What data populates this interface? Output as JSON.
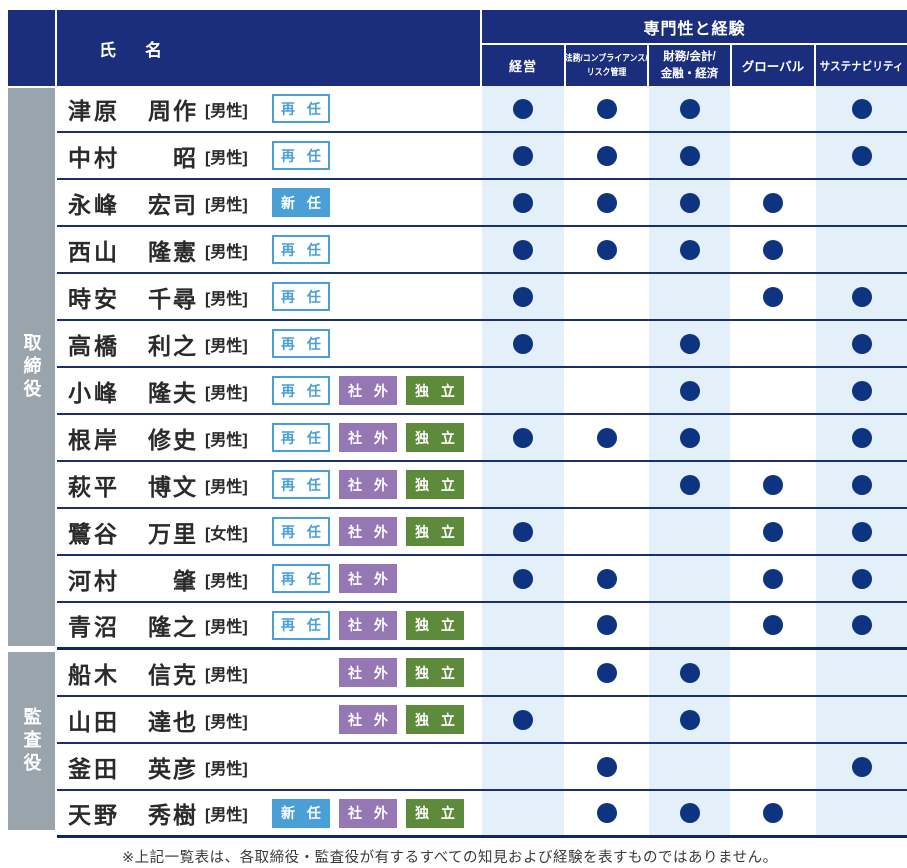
{
  "header": {
    "name_col": "氏　名",
    "expertise_group": "専門性と経験",
    "expertise_cols": [
      {
        "label": "経営",
        "lines": [
          "経営"
        ]
      },
      {
        "label": "法務/コンプライアンス/リスク管理",
        "lines": [
          "法務/コンプライアンス/",
          "リスク管理"
        ]
      },
      {
        "label": "財務/会計/金融・経済",
        "lines": [
          "財務/会計/",
          "金融・経済"
        ]
      },
      {
        "label": "グローバル",
        "lines": [
          "グローバル"
        ]
      },
      {
        "label": "サステナビリティ",
        "lines": [
          "サステナビリティ"
        ]
      }
    ]
  },
  "badge_defs": {
    "sainin": {
      "label": "再 任",
      "style": "outline-blue"
    },
    "shinnin": {
      "label": "新 任",
      "style": "fill-blue"
    },
    "shagai": {
      "label": "社 外",
      "style": "fill-purple"
    },
    "dokuritsu": {
      "label": "独 立",
      "style": "fill-green"
    }
  },
  "sections": [
    {
      "label": "取締役",
      "rows": [
        {
          "sei": "津原",
          "mei": "周作",
          "gender": "[男性]",
          "badges": [
            "sainin",
            null,
            null
          ],
          "dots": [
            1,
            1,
            1,
            0,
            1
          ]
        },
        {
          "sei": "中村",
          "mei": "昭",
          "gender": "[男性]",
          "badges": [
            "sainin",
            null,
            null
          ],
          "dots": [
            1,
            1,
            1,
            0,
            1
          ]
        },
        {
          "sei": "永峰",
          "mei": "宏司",
          "gender": "[男性]",
          "badges": [
            "shinnin",
            null,
            null
          ],
          "dots": [
            1,
            1,
            1,
            1,
            0
          ]
        },
        {
          "sei": "西山",
          "mei": "隆憲",
          "gender": "[男性]",
          "badges": [
            "sainin",
            null,
            null
          ],
          "dots": [
            1,
            1,
            1,
            1,
            0
          ]
        },
        {
          "sei": "時安",
          "mei": "千尋",
          "gender": "[男性]",
          "badges": [
            "sainin",
            null,
            null
          ],
          "dots": [
            1,
            0,
            0,
            1,
            1
          ]
        },
        {
          "sei": "高橋",
          "mei": "利之",
          "gender": "[男性]",
          "badges": [
            "sainin",
            null,
            null
          ],
          "dots": [
            1,
            0,
            1,
            0,
            1
          ]
        },
        {
          "sei": "小峰",
          "mei": "隆夫",
          "gender": "[男性]",
          "badges": [
            "sainin",
            "shagai",
            "dokuritsu"
          ],
          "dots": [
            0,
            0,
            1,
            0,
            1
          ]
        },
        {
          "sei": "根岸",
          "mei": "修史",
          "gender": "[男性]",
          "badges": [
            "sainin",
            "shagai",
            "dokuritsu"
          ],
          "dots": [
            1,
            1,
            1,
            0,
            1
          ]
        },
        {
          "sei": "萩平",
          "mei": "博文",
          "gender": "[男性]",
          "badges": [
            "sainin",
            "shagai",
            "dokuritsu"
          ],
          "dots": [
            0,
            0,
            1,
            1,
            1
          ]
        },
        {
          "sei": "鷺谷",
          "mei": "万里",
          "gender": "[女性]",
          "badges": [
            "sainin",
            "shagai",
            "dokuritsu"
          ],
          "dots": [
            1,
            0,
            0,
            1,
            1
          ]
        },
        {
          "sei": "河村",
          "mei": "肇",
          "gender": "[男性]",
          "badges": [
            "sainin",
            "shagai",
            null
          ],
          "dots": [
            1,
            1,
            0,
            1,
            1
          ]
        },
        {
          "sei": "青沼",
          "mei": "隆之",
          "gender": "[男性]",
          "badges": [
            "sainin",
            "shagai",
            "dokuritsu"
          ],
          "dots": [
            0,
            1,
            0,
            1,
            1
          ]
        }
      ]
    },
    {
      "label": "監査役",
      "rows": [
        {
          "sei": "船木",
          "mei": "信克",
          "gender": "[男性]",
          "badges": [
            null,
            "shagai",
            "dokuritsu"
          ],
          "dots": [
            0,
            1,
            1,
            0,
            0
          ]
        },
        {
          "sei": "山田",
          "mei": "達也",
          "gender": "[男性]",
          "badges": [
            null,
            "shagai",
            "dokuritsu"
          ],
          "dots": [
            1,
            0,
            1,
            0,
            0
          ]
        },
        {
          "sei": "釜田",
          "mei": "英彦",
          "gender": "[男性]",
          "badges": [
            null,
            null,
            null
          ],
          "dots": [
            0,
            1,
            0,
            0,
            1
          ]
        },
        {
          "sei": "天野",
          "mei": "秀樹",
          "gender": "[男性]",
          "badges": [
            "shinnin",
            "shagai",
            "dokuritsu"
          ],
          "dots": [
            0,
            1,
            1,
            1,
            0
          ]
        }
      ]
    }
  ],
  "footer": {
    "note": "※上記一覧表は、各取締役・監査役が有するすべての知見および経験を表すものではありません。"
  },
  "colors": {
    "header_navy": "#1b2e7e",
    "row_line_navy": "#1b2e6e",
    "dot_navy": "#0e3380",
    "stripe_light_blue": "#e3f0fa",
    "sidebar_gray": "#9aa4ac",
    "badge_blue": "#4aa0d6",
    "badge_purple": "#9577b4",
    "badge_green": "#5e8a3c"
  }
}
